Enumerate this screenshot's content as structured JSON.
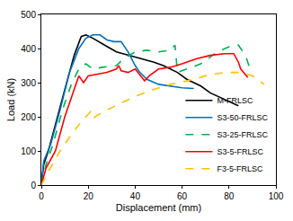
{
  "chart_data": {
    "type": "line",
    "x_label": "Displacement (mm)",
    "y_label": "Load (kN)",
    "xlim": [
      0,
      100
    ],
    "xticks": [
      0,
      20,
      40,
      60,
      80,
      100
    ],
    "ylim": [
      0,
      500
    ],
    "yticks": [
      0,
      100,
      200,
      300,
      400,
      500
    ],
    "grid": false,
    "legend": "lower right",
    "series": [
      {
        "name": "M-FRLSC",
        "color": "#000000",
        "line_style": "solid",
        "x": [
          0,
          1,
          3,
          6,
          10,
          14,
          17,
          19,
          22,
          27,
          32,
          40,
          48,
          52,
          58,
          62,
          68,
          72,
          78,
          84
        ],
        "values": [
          0,
          60,
          100,
          180,
          280,
          380,
          435,
          440,
          430,
          410,
          390,
          375,
          360,
          350,
          330,
          310,
          290,
          270,
          250,
          232
        ]
      },
      {
        "name": "S3-50-FRLSC",
        "color": "#0070c0",
        "line_style": "solid",
        "x": [
          0,
          1,
          4,
          8,
          12,
          16,
          19,
          22,
          25,
          28,
          31,
          34,
          37,
          40,
          42,
          45,
          50,
          55,
          60,
          65
        ],
        "values": [
          0,
          70,
          120,
          220,
          330,
          400,
          430,
          440,
          440,
          425,
          420,
          420,
          390,
          350,
          330,
          310,
          295,
          290,
          285,
          283
        ]
      },
      {
        "name": "S3-25-FRLSC",
        "color": "#00b050",
        "line_style": "dash",
        "x": [
          0,
          2,
          5,
          9,
          13,
          16,
          19,
          22,
          26,
          32,
          35,
          40,
          45,
          50,
          55,
          57,
          58,
          62,
          68,
          75,
          80,
          84,
          87,
          89
        ],
        "values": [
          0,
          60,
          120,
          220,
          300,
          340,
          355,
          340,
          345,
          350,
          370,
          390,
          395,
          390,
          395,
          410,
          330,
          340,
          355,
          390,
          405,
          410,
          380,
          340
        ]
      },
      {
        "name": "S3-5-FRLSC",
        "color": "#ff0000",
        "line_style": "solid",
        "x": [
          0,
          2,
          6,
          10,
          14,
          16,
          18,
          20,
          24,
          28,
          32,
          33,
          34,
          37,
          40,
          44,
          46,
          50,
          55,
          60,
          66,
          72,
          78,
          82,
          84,
          85,
          88
        ],
        "values": [
          0,
          50,
          100,
          200,
          280,
          320,
          300,
          320,
          325,
          330,
          340,
          350,
          335,
          330,
          340,
          305,
          320,
          340,
          345,
          355,
          370,
          380,
          385,
          385,
          360,
          340,
          315
        ]
      },
      {
        "name": "F3-5-FRLSC",
        "color": "#ffc000",
        "line_style": "dash",
        "x": [
          0,
          3,
          8,
          13,
          17,
          19,
          21,
          22,
          24,
          28,
          34,
          40,
          48,
          55,
          62,
          70,
          78,
          85,
          90,
          95
        ],
        "values": [
          0,
          40,
          100,
          150,
          185,
          200,
          215,
          195,
          205,
          220,
          240,
          260,
          280,
          295,
          305,
          320,
          330,
          330,
          320,
          295
        ]
      }
    ]
  }
}
